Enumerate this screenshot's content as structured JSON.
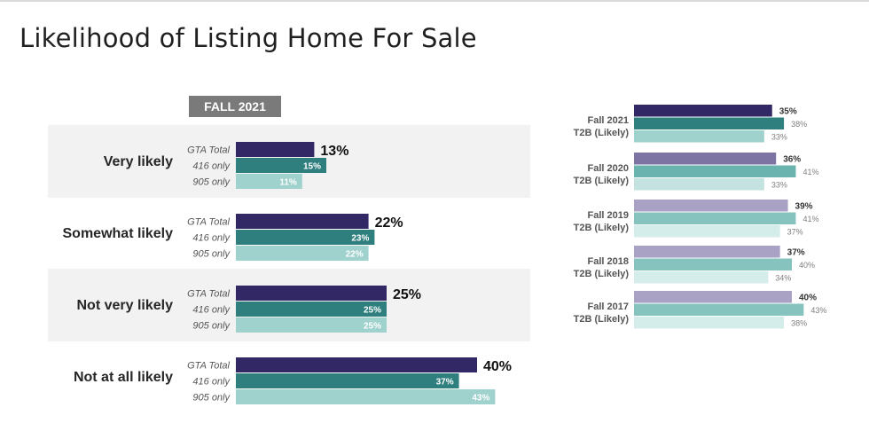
{
  "title": "Likelihood of Listing Home For Sale",
  "season_label": "FALL 2021",
  "colors": {
    "gta_total": "#322866",
    "only_416": "#2e7f7e",
    "only_905": "#9fd1cd",
    "band": "#f2f2f2",
    "hist_gta": "#a9a2c4",
    "hist_416": "#86c3bf",
    "hist_905": "#d4ecea",
    "label_text": "#555555"
  },
  "chart_data": [
    {
      "type": "bar",
      "orientation": "horizontal",
      "title": "FALL 2021",
      "categories": [
        "Very likely",
        "Somewhat likely",
        "Not very likely",
        "Not at all likely"
      ],
      "series": [
        {
          "name": "GTA Total",
          "values": [
            13,
            22,
            25,
            40
          ]
        },
        {
          "name": "416 only",
          "values": [
            15,
            23,
            25,
            37
          ]
        },
        {
          "name": "905 only",
          "values": [
            11,
            22,
            25,
            43
          ]
        }
      ],
      "value_suffix": "%",
      "grid": false
    },
    {
      "type": "bar",
      "orientation": "horizontal",
      "categories": [
        "Fall 2021",
        "Fall 2020",
        "Fall 2019",
        "Fall 2018",
        "Fall 2017"
      ],
      "category_sublabel": "T2B (Likely)",
      "series": [
        {
          "values": [
            35,
            36,
            39,
            37,
            40
          ]
        },
        {
          "values": [
            38,
            41,
            41,
            40,
            43
          ]
        },
        {
          "values": [
            33,
            33,
            37,
            34,
            38
          ]
        }
      ],
      "value_suffix": "%",
      "grid": false
    }
  ]
}
